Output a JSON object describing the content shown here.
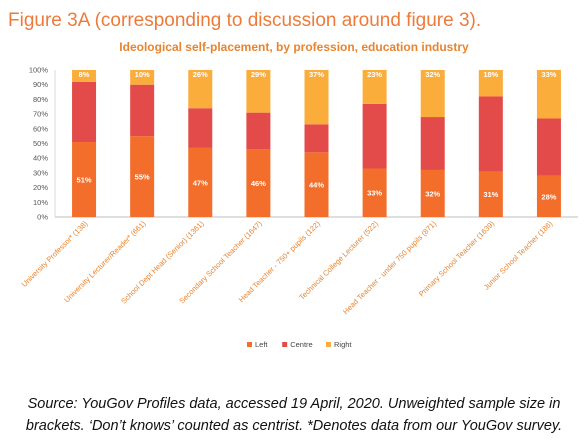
{
  "figure_title": "Figure 3A (corresponding to discussion around figure 3).",
  "source_line1": "Source: YouGov Profiles data, accessed 19 April, 2020. Unweighted sample size in",
  "source_line2": "brackets. ‘Don’t knows’ counted as centrist. *Denotes data from our YouGov survey.",
  "chart_data": {
    "type": "bar",
    "stacked": true,
    "title": "Ideological self-placement, by profession, education industry",
    "xlabel": "",
    "ylabel": "",
    "ylim": [
      0,
      100
    ],
    "yticks": [
      "0%",
      "10%",
      "20%",
      "30%",
      "40%",
      "50%",
      "60%",
      "70%",
      "80%",
      "90%",
      "100%"
    ],
    "grid": false,
    "legend_position": "bottom",
    "categories": [
      "University Professor* (138)",
      "University Lecturer/Reader* (661)",
      "School Dept Head (Senior) (1361)",
      "Secondary School Teacher (1647)",
      "Head Teacher - 750+ pupils (122)",
      "Technical College Lecturer (522)",
      "Head Teacher - under 750 pupils (871)",
      "Primary School Teacher (1639)",
      "Junior School Teacher (186)"
    ],
    "series": [
      {
        "name": "Left",
        "color": "#f26e2a",
        "values": [
          51,
          55,
          47,
          46,
          44,
          33,
          32,
          31,
          28
        ],
        "labels": [
          "51%",
          "55%",
          "47%",
          "46%",
          "44%",
          "33%",
          "32%",
          "31%",
          "28%"
        ]
      },
      {
        "name": "Centre",
        "color": "#e34b4a",
        "values": [
          41,
          35,
          27,
          25,
          19,
          44,
          36,
          51,
          39
        ],
        "labels": [
          "",
          "",
          "",
          "",
          "",
          "",
          "",
          "",
          ""
        ]
      },
      {
        "name": "Right",
        "color": "#fbad3c",
        "values": [
          8,
          10,
          26,
          29,
          37,
          23,
          32,
          18,
          33
        ],
        "labels": [
          "8%",
          "10%",
          "26%",
          "29%",
          "37%",
          "23%",
          "32%",
          "18%",
          "33%"
        ]
      }
    ]
  }
}
